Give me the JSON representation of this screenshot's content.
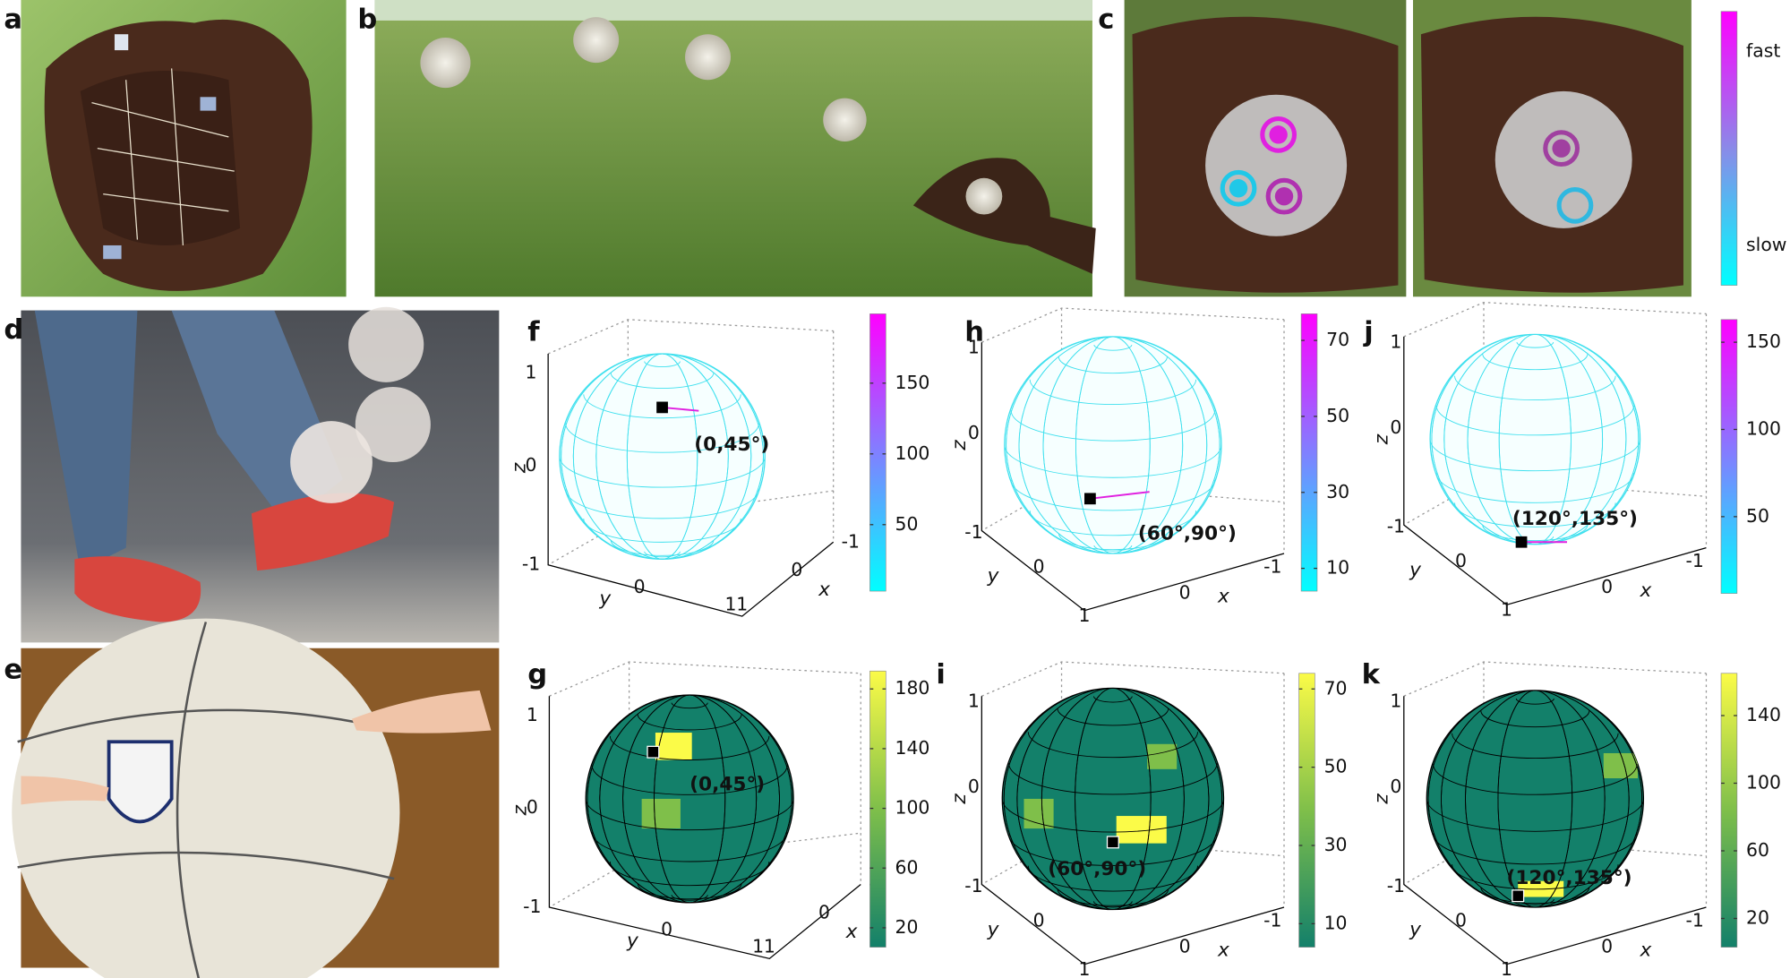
{
  "panel_labels": [
    "a",
    "b",
    "c",
    "d",
    "e",
    "f",
    "g",
    "h",
    "i",
    "j",
    "k"
  ],
  "speed_colorbar": {
    "high_label": "fast",
    "low_label": "slow",
    "colormap": [
      "#ff00ff",
      "#8a8ae8",
      "#00ffff"
    ]
  },
  "plots": [
    {
      "annotation": "(0,45°)",
      "colorbar_ticks": [
        50,
        100,
        150
      ],
      "clim": [
        3,
        199
      ],
      "colormap": [
        "#00ffff",
        "#8080ff",
        "#ff00ff"
      ],
      "z_label": "z",
      "y_label": "y",
      "x_label": "x",
      "z_ticks": [
        1,
        0,
        -1
      ],
      "y_ticks": [
        0,
        1
      ],
      "x_ticks": [
        -1,
        0,
        1
      ]
    },
    {
      "annotation": "(0,45°)",
      "colorbar_ticks": [
        20,
        60,
        100,
        140,
        180
      ],
      "clim": [
        7,
        192
      ],
      "colormap": [
        "#13806a",
        "#7fbf4a",
        "#fbfb48"
      ],
      "z_label": "z",
      "y_label": "y",
      "x_label": "x",
      "z_ticks": [
        1,
        0,
        -1
      ],
      "y_ticks": [
        0,
        1
      ],
      "x_ticks": [
        -1,
        0,
        1
      ]
    },
    {
      "annotation": "(60°,90°)",
      "colorbar_ticks": [
        10,
        30,
        50,
        70
      ],
      "clim": [
        4,
        77
      ],
      "colormap": [
        "#00ffff",
        "#8080ff",
        "#ff00ff"
      ],
      "z_label": "z",
      "y_label": "y",
      "x_label": "x",
      "z_ticks": [
        1,
        0,
        -1
      ],
      "y_ticks": [
        0
      ],
      "x_ticks": [
        1,
        0,
        -1
      ]
    },
    {
      "annotation": "(60°,90°)",
      "colorbar_ticks": [
        10,
        30,
        50,
        70
      ],
      "clim": [
        4,
        74
      ],
      "colormap": [
        "#13806a",
        "#7fbf4a",
        "#fbfb48"
      ],
      "z_label": "z",
      "y_label": "y",
      "x_label": "x",
      "z_ticks": [
        1,
        0,
        -1
      ],
      "y_ticks": [
        0
      ],
      "x_ticks": [
        1,
        0,
        -1
      ]
    },
    {
      "annotation": "(120°,135°)",
      "colorbar_ticks": [
        50,
        100,
        150
      ],
      "clim": [
        6,
        163
      ],
      "colormap": [
        "#00ffff",
        "#8080ff",
        "#ff00ff"
      ],
      "z_label": "z",
      "y_label": "y",
      "x_label": "x",
      "z_ticks": [
        1,
        0,
        -1
      ],
      "y_ticks": [
        0
      ],
      "x_ticks": [
        1,
        0,
        -1
      ]
    },
    {
      "annotation": "(120°,135°)",
      "colorbar_ticks": [
        20,
        60,
        100,
        140
      ],
      "clim": [
        3,
        165
      ],
      "colormap": [
        "#13806a",
        "#7fbf4a",
        "#fbfb48"
      ],
      "z_label": "z",
      "y_label": "y",
      "x_label": "x",
      "z_ticks": [
        1,
        0,
        -1
      ],
      "y_ticks": [
        0
      ],
      "x_ticks": [
        1,
        0,
        -1
      ]
    }
  ]
}
